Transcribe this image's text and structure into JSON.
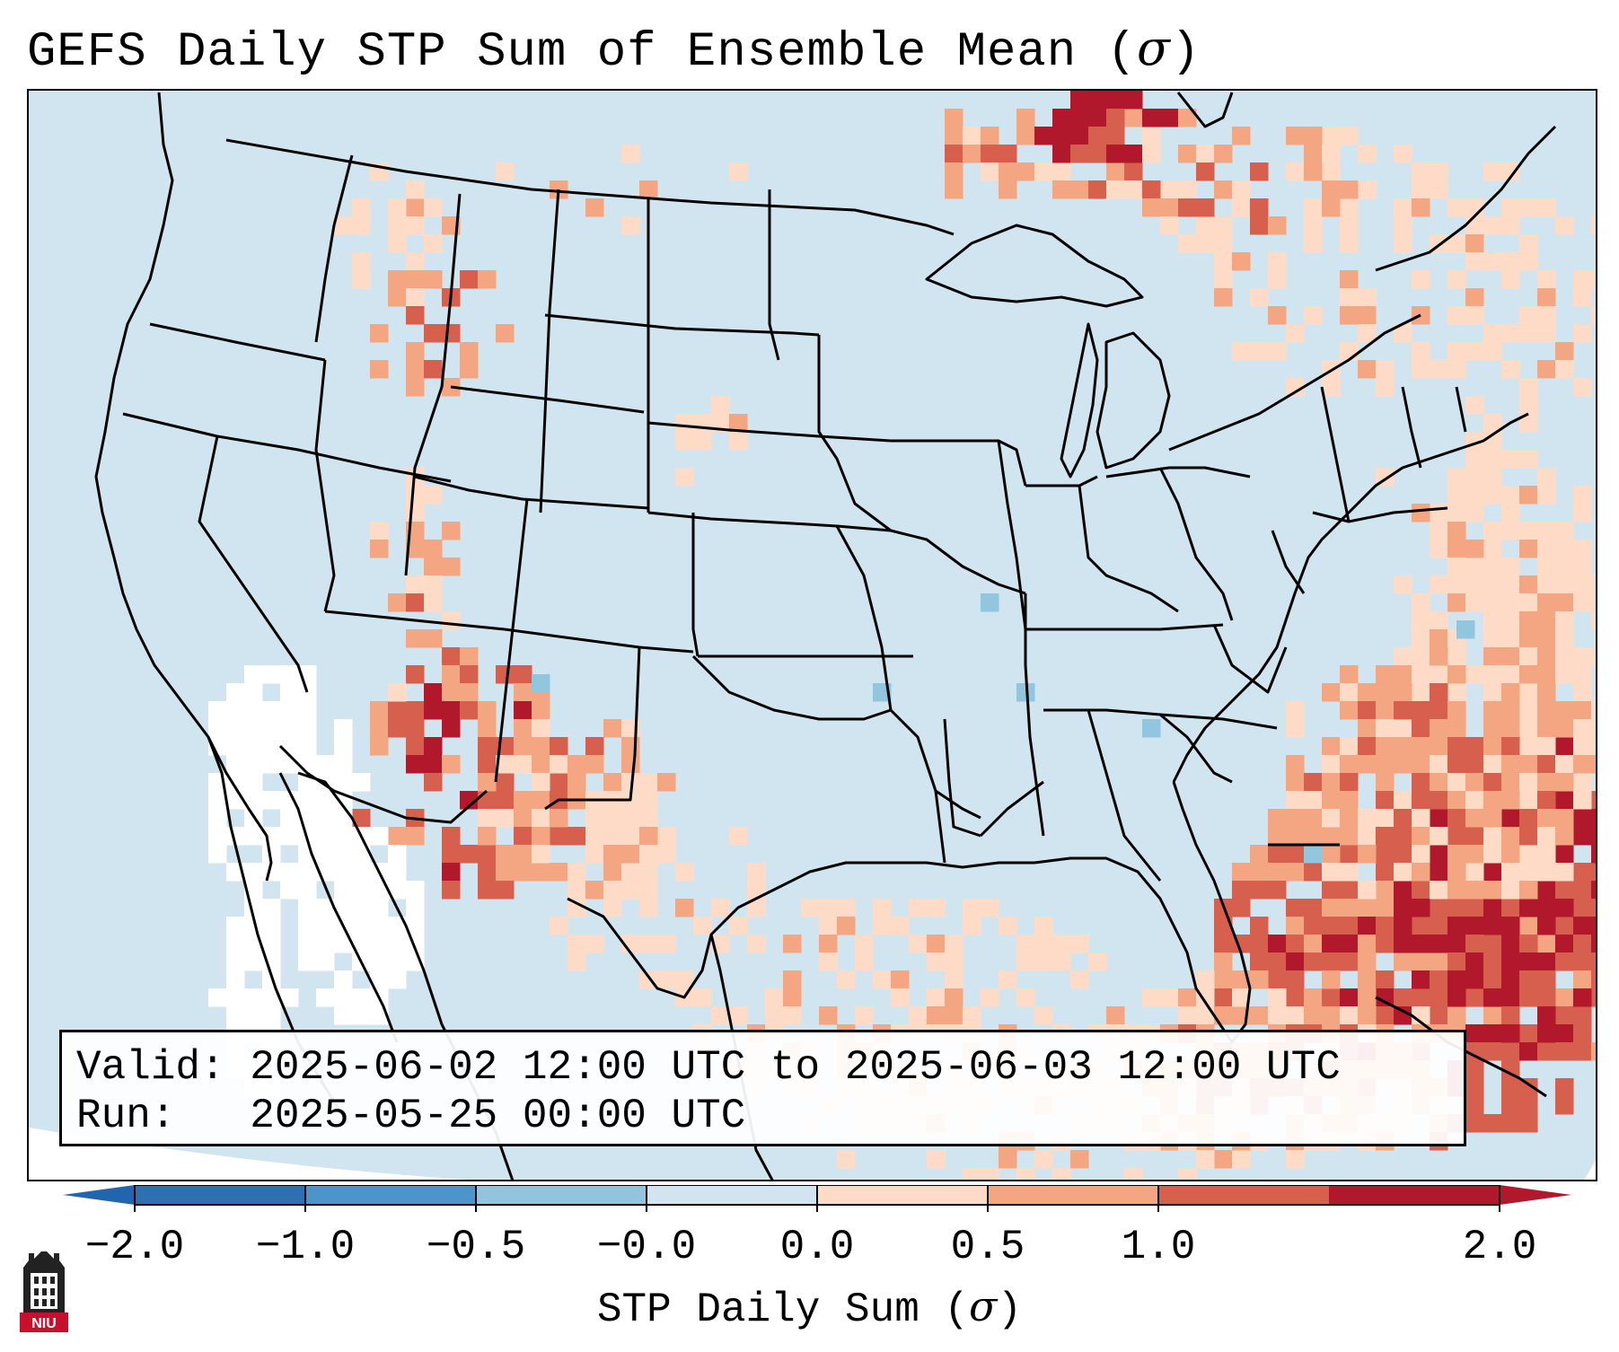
{
  "title": {
    "prefix": "GEFS Daily STP Sum of Ensemble Mean (",
    "symbol": "σ",
    "suffix": ")"
  },
  "info": {
    "valid_line": "Valid: 2025-06-02 12:00 UTC to 2025-06-03 12:00 UTC",
    "run_line": "Run:   2025-05-25 00:00 UTC"
  },
  "colorbar": {
    "ticks": [
      "−2.0",
      "−1.0",
      "−0.5",
      "−0.0",
      "0.0",
      "0.5",
      "1.0",
      "2.0"
    ],
    "bin_colors": [
      "#2f70b0",
      "#4f94c8",
      "#93c4de",
      "#d1e5f0",
      "#fddbc7",
      "#f4a582",
      "#d6604d",
      "#b2182b"
    ],
    "extend_low_color": "#2166ac",
    "extend_high_color": "#b2182b",
    "label_prefix": "STP Daily Sum (",
    "label_symbol": "σ",
    "label_suffix": ")"
  },
  "logo": {
    "text": "NIU",
    "color": "#c8102e"
  },
  "map_colors": {
    "neutral_blue": "#d1e5f0",
    "white_zone": "#ffffff",
    "light_red": "#fddbc7",
    "mid_red": "#f4a582",
    "strong_red": "#d6604d",
    "dark_red": "#b2182b",
    "light_blue_cell": "#92c5de"
  }
}
